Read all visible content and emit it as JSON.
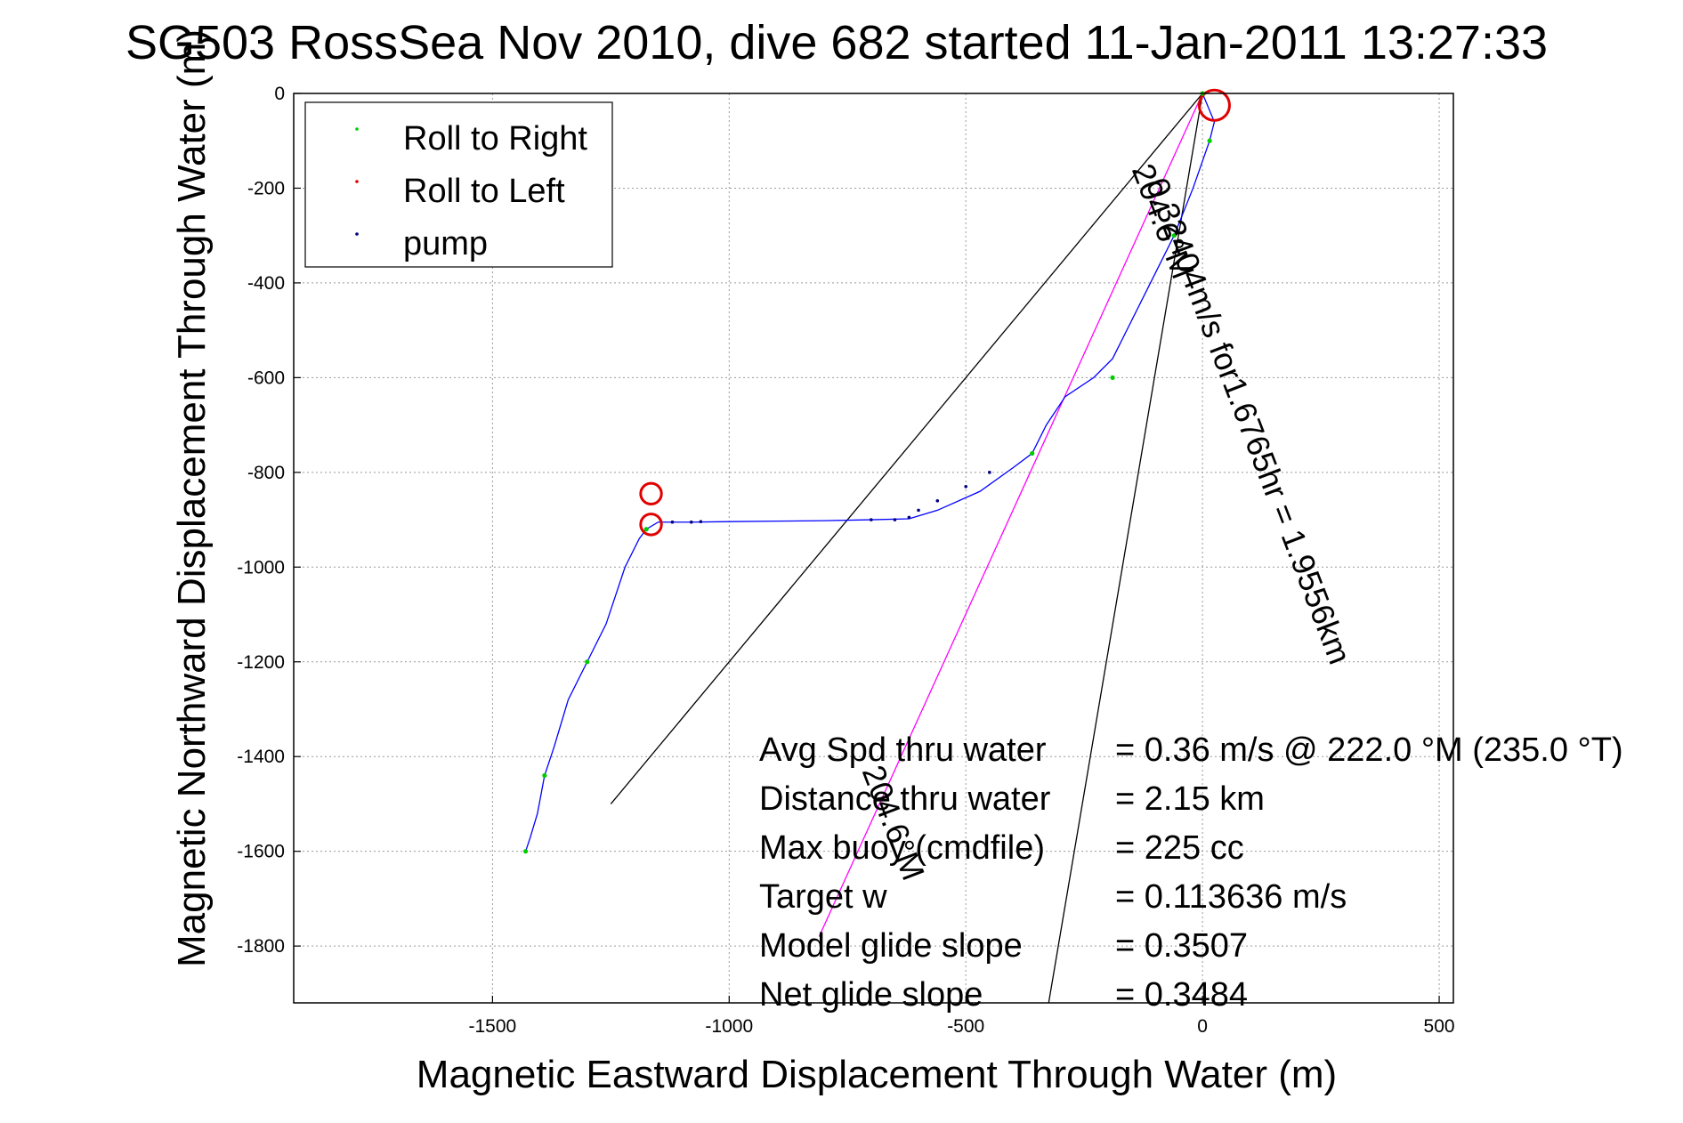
{
  "chart_data": {
    "type": "line",
    "title": "SG503 RossSea Nov 2010, dive 682 started 11-Jan-2011 13:27:33",
    "xlabel": "Magnetic Eastward Displacement Through Water (m)",
    "ylabel": "Magnetic Northward Displacement Through Water (m)",
    "xlim": [
      -1920,
      530
    ],
    "ylim": [
      -1920,
      0
    ],
    "xticks": [
      -1500,
      -1000,
      -500,
      0,
      500
    ],
    "yticks": [
      0,
      -200,
      -400,
      -600,
      -800,
      -1000,
      -1200,
      -1400,
      -1600,
      -1800
    ],
    "grid": true,
    "legend_position": "top-left",
    "legend": [
      {
        "label": "Roll to Right",
        "color": "#00cc00"
      },
      {
        "label": "Roll to Left",
        "color": "#e00000"
      },
      {
        "label": "pump",
        "color": "#000080"
      }
    ],
    "track": {
      "color": "#0000ff",
      "x": [
        0,
        25,
        15,
        -20,
        -60,
        -110,
        -160,
        -190,
        -230,
        -290,
        -330,
        -360,
        -400,
        -470,
        -560,
        -620,
        -700,
        -800,
        -900,
        -1000,
        -1080,
        -1150,
        -1175,
        -1190,
        -1220,
        -1260,
        -1300,
        -1340,
        -1370,
        -1390,
        -1405,
        -1420,
        -1430
      ],
      "y": [
        0,
        -60,
        -100,
        -200,
        -300,
        -400,
        -500,
        -560,
        -600,
        -640,
        -700,
        -760,
        -790,
        -840,
        -880,
        -898,
        -900,
        -902,
        -903,
        -904,
        -905,
        -905,
        -920,
        -940,
        -1000,
        -1120,
        -1200,
        -1280,
        -1380,
        -1440,
        -1520,
        -1570,
        -1600
      ]
    },
    "roll_right_points": {
      "color": "#00cc00",
      "x": [
        0,
        15,
        -60,
        -190,
        -360,
        -1175,
        -1300,
        -1390,
        -1430
      ],
      "y": [
        0,
        -100,
        -300,
        -600,
        -760,
        -920,
        -1200,
        -1440,
        -1600
      ]
    },
    "roll_left_loops": {
      "color": "#e00000",
      "loops": [
        {
          "cx": 25,
          "cy": -25,
          "r": 32
        },
        {
          "cx": -1165,
          "cy": -845,
          "r": 22
        },
        {
          "cx": -1165,
          "cy": -910,
          "r": 22
        }
      ]
    },
    "pump_points": {
      "color": "#000080",
      "x": [
        -700,
        -650,
        -620,
        -600,
        -560,
        -500,
        -450,
        -1060,
        -1080,
        -1120
      ],
      "y": [
        -900,
        -900,
        -895,
        -880,
        -860,
        -830,
        -800,
        -904,
        -905,
        -905
      ]
    },
    "lines": [
      {
        "color": "#000000",
        "x": [
          0,
          -1250
        ],
        "y": [
          0,
          -1500
        ]
      },
      {
        "color": "#000000",
        "x": [
          0,
          -325
        ],
        "y": [
          0,
          -1920
        ]
      },
      {
        "color": "#ff00ff",
        "x": [
          0,
          -810
        ],
        "y": [
          0,
          -1780
        ]
      }
    ],
    "rotated_labels": [
      {
        "text": "0.32404m/s for1.6765hr = 1.9556km",
        "x": -120,
        "y": -190,
        "angle": 69
      },
      {
        "text": "204.6°M",
        "x": -150,
        "y": -160,
        "angle": 69
      },
      {
        "text": "204.6°M",
        "x": -720,
        "y": -1430,
        "angle": 69
      }
    ],
    "annotations": [
      {
        "label": "Avg Spd thru water",
        "value": "=  0.36 m/s @ 222.0 °M (235.0 °T)"
      },
      {
        "label": "Distance thru water",
        "value": "=  2.15 km"
      },
      {
        "label": "Max buoy (cmdfile)",
        "value": "= 225 cc"
      },
      {
        "label": "Target w",
        "value": "= 0.113636 m/s"
      },
      {
        "label": "Model glide slope",
        "value": "= 0.3507"
      },
      {
        "label": "Net glide slope",
        "value": "= 0.3484"
      }
    ]
  }
}
